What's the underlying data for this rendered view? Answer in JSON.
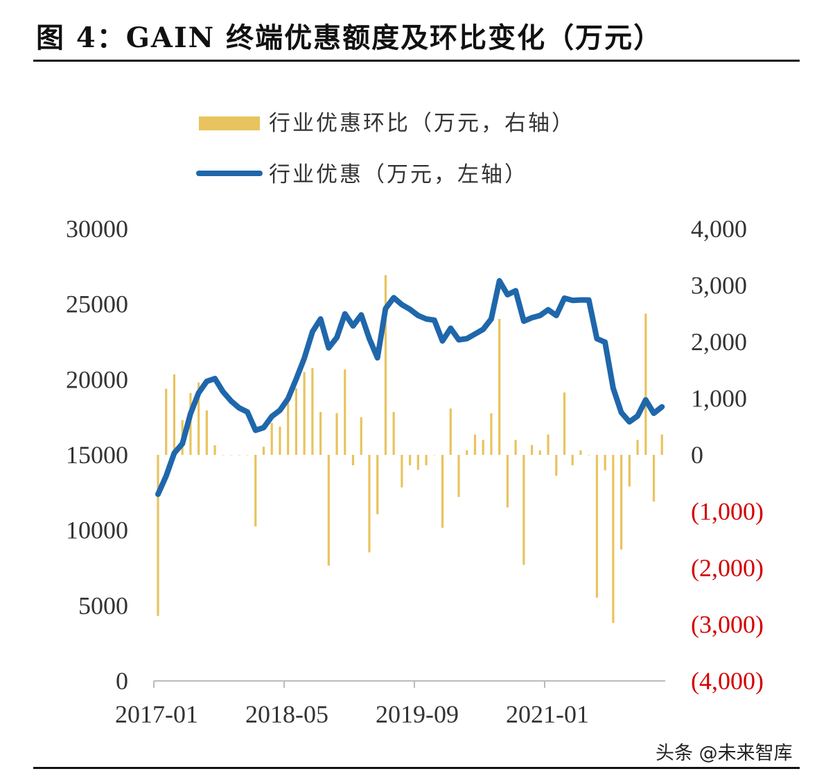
{
  "title": "图 4：GAIN 终端优惠额度及环比变化（万元）",
  "watermark": "头条 @未来智库",
  "colors": {
    "bar": "#E8C35E",
    "line": "#1F67AB",
    "negative_label": "#D40000"
  },
  "chart_data": {
    "type": "bar+line",
    "title": "",
    "legend_position": "top",
    "grid": false,
    "x": [
      "2017-01",
      "2017-02",
      "2017-03",
      "2017-04",
      "2017-05",
      "2017-06",
      "2017-07",
      "2017-08",
      "2017-09",
      "2017-10",
      "2017-11",
      "2017-12",
      "2018-01",
      "2018-02",
      "2018-03",
      "2018-04",
      "2018-05",
      "2018-06",
      "2018-07",
      "2018-08",
      "2018-09",
      "2018-10",
      "2018-11",
      "2018-12",
      "2019-01",
      "2019-02",
      "2019-03",
      "2019-04",
      "2019-05",
      "2019-06",
      "2019-07",
      "2019-08",
      "2019-09",
      "2019-10",
      "2019-11",
      "2019-12",
      "2020-01",
      "2020-02",
      "2020-03",
      "2020-04",
      "2020-05",
      "2020-06",
      "2020-07",
      "2020-08",
      "2020-09",
      "2020-10",
      "2020-11",
      "2020-12",
      "2021-01",
      "2021-02",
      "2021-03",
      "2021-04",
      "2021-05",
      "2021-06",
      "2021-07",
      "2021-08",
      "2021-09",
      "2021-10",
      "2021-11",
      "2021-12",
      "2022-01",
      "2022-02",
      "2022-03"
    ],
    "x_tick_labels": [
      "2017-01",
      "2018-05",
      "2019-09",
      "2021-01"
    ],
    "y_left": {
      "range": [
        0,
        30000
      ],
      "ticks": [
        "30000",
        "25000",
        "20000",
        "15000",
        "10000",
        "5000",
        "0"
      ]
    },
    "y_right": {
      "range": [
        -4000,
        4000
      ],
      "ticks": [
        "4,000",
        "3,000",
        "2,000",
        "1,000",
        "0",
        "(1,000)",
        "(2,000)",
        "(3,000)",
        "(4,000)"
      ]
    },
    "series": [
      {
        "name": "行业优惠环比（万元，右轴）",
        "type": "bar",
        "axis": "right",
        "values": [
          -2850,
          1170,
          1425,
          615,
          1095,
          1280,
          785,
          170,
          0,
          0,
          0,
          0,
          -1265,
          145,
          565,
          500,
          940,
          1180,
          1465,
          1535,
          760,
          -1960,
          740,
          1515,
          -185,
          665,
          -1725,
          -1050,
          3180,
          760,
          -575,
          -185,
          -265,
          -185,
          0,
          -1290,
          820,
          -745,
          80,
          360,
          265,
          735,
          2405,
          -930,
          265,
          -1945,
          175,
          80,
          360,
          -370,
          1105,
          -185,
          80,
          0,
          -2525,
          -275,
          -2975,
          -1675,
          -560,
          265,
          2500,
          -825,
          360
        ]
      },
      {
        "name": "行业优惠（万元，左轴）",
        "type": "line",
        "axis": "left",
        "values": [
          12390,
          13590,
          15120,
          15740,
          17730,
          19110,
          19880,
          20060,
          19190,
          18570,
          18110,
          17850,
          16630,
          16810,
          17550,
          17960,
          18730,
          20030,
          21410,
          23170,
          24020,
          22100,
          22790,
          24360,
          23560,
          24290,
          22710,
          21440,
          24710,
          25430,
          24970,
          24660,
          24250,
          24020,
          23940,
          22560,
          23400,
          22640,
          22710,
          23020,
          23330,
          24020,
          26550,
          25630,
          25890,
          23870,
          24100,
          24250,
          24630,
          24250,
          25400,
          25250,
          25280,
          25280,
          22710,
          22480,
          19420,
          17810,
          17190,
          17580,
          18650,
          17760,
          18190
        ]
      }
    ]
  }
}
